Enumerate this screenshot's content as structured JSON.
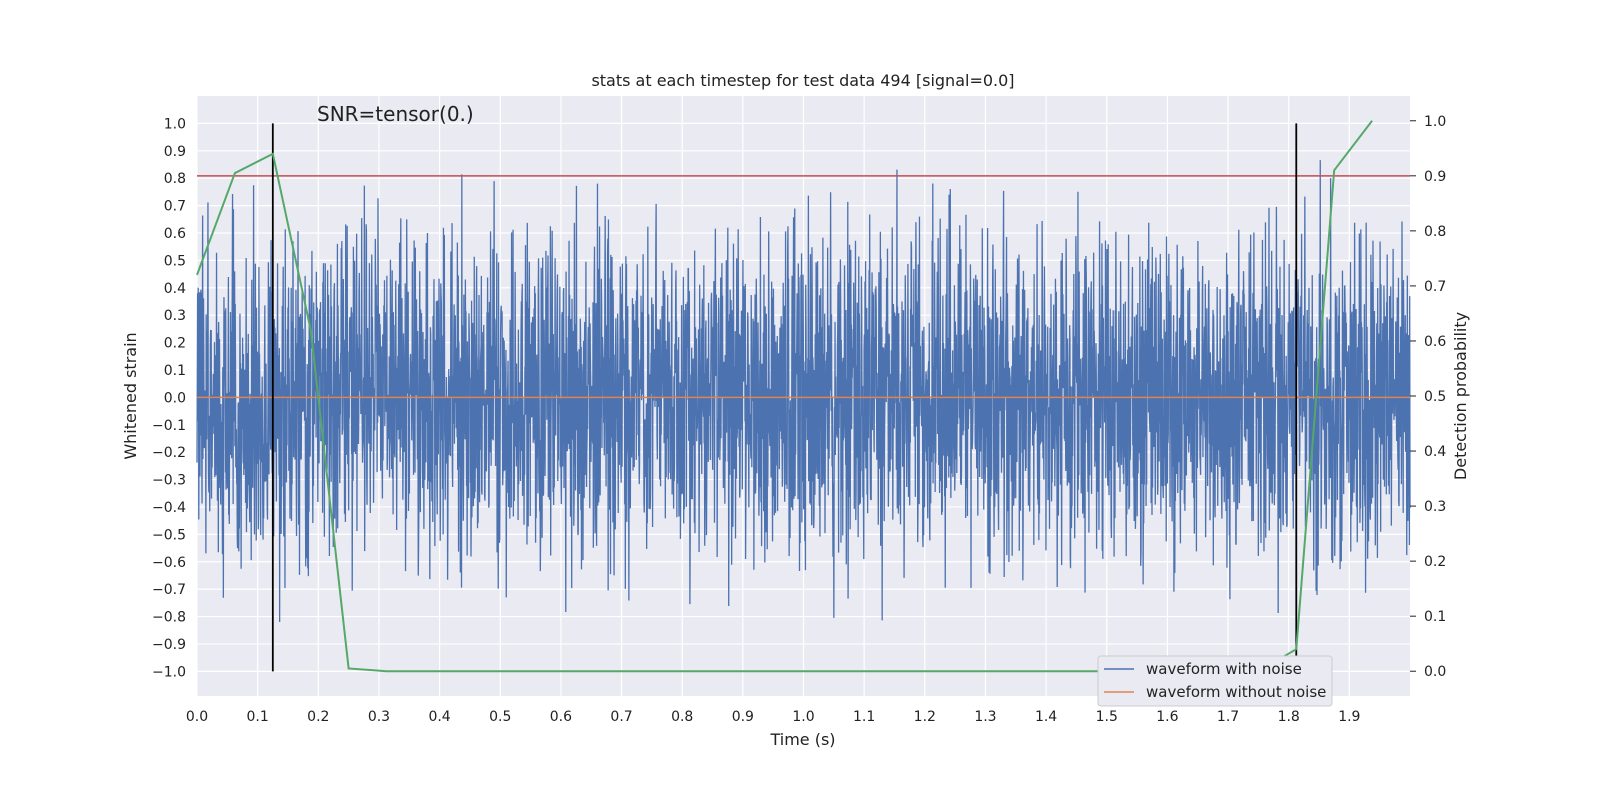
{
  "chart_data": {
    "type": "line",
    "title": "stats at each timestep for test data 494 [signal=0.0]",
    "annotation": "SNR=tensor(0.)",
    "xlabel": "Time (s)",
    "ylabel": "Whitened strain",
    "y2label": "Detection probability",
    "xlim": [
      0.0,
      2.0
    ],
    "ylim": [
      -1.09,
      1.1
    ],
    "y2lim": [
      -0.045,
      1.045
    ],
    "xticks": [
      0.0,
      0.1,
      0.2,
      0.3,
      0.4,
      0.5,
      0.6,
      0.7,
      0.8,
      0.9,
      1.0,
      1.1,
      1.2,
      1.3,
      1.4,
      1.5,
      1.6,
      1.7,
      1.8,
      1.9
    ],
    "yticks": [
      -1.0,
      -0.9,
      -0.8,
      -0.7,
      -0.6,
      -0.5,
      -0.4,
      -0.3,
      -0.2,
      -0.1,
      0.0,
      0.1,
      0.2,
      0.3,
      0.4,
      0.5,
      0.6,
      0.7,
      0.8,
      0.9,
      1.0
    ],
    "y2ticks": [
      0.0,
      0.1,
      0.2,
      0.3,
      0.4,
      0.5,
      0.6,
      0.7,
      0.8,
      0.9,
      1.0
    ],
    "grid": true,
    "legend_position": "bottom-right",
    "series": [
      {
        "name": "waveform with noise",
        "color": "#4c72b0",
        "axis": "left",
        "noise_samples": 4096,
        "noise_std": 0.3,
        "clip": [
          -1.0,
          1.0
        ],
        "x_range": [
          0.0,
          2.0
        ]
      },
      {
        "name": "waveform without noise",
        "color": "#dd8452",
        "axis": "left",
        "x": [
          0.0,
          2.0
        ],
        "y": [
          0.0,
          0.0
        ]
      },
      {
        "name": "",
        "color": "#55a868",
        "axis": "right",
        "x": [
          0.0,
          0.0625,
          0.125,
          0.1875,
          0.25,
          0.3125,
          0.375,
          0.4375,
          0.5,
          0.5625,
          0.625,
          0.6875,
          0.75,
          0.8125,
          0.875,
          0.9375,
          1.0,
          1.0625,
          1.125,
          1.1875,
          1.25,
          1.3125,
          1.375,
          1.4375,
          1.5,
          1.5625,
          1.625,
          1.6875,
          1.75,
          1.8125,
          1.875,
          1.9375
        ],
        "y": [
          0.72,
          0.905,
          0.94,
          0.62,
          0.005,
          0.0,
          0.0,
          0.0,
          0.0,
          0.0,
          0.0,
          0.0,
          0.0,
          0.0,
          0.0,
          0.0,
          0.0,
          0.0,
          0.0,
          0.0,
          0.0,
          0.0,
          0.0,
          0.0,
          0.0,
          0.0,
          0.0,
          0.0,
          0.0,
          0.04,
          0.91,
          1.0
        ]
      }
    ],
    "threshold": {
      "y2": 0.9,
      "color": "#c44e52"
    },
    "vlines": [
      {
        "x": 0.125,
        "y": [
          -1.0,
          1.0
        ],
        "color": "#000000"
      },
      {
        "x": 1.8125,
        "y": [
          -1.0,
          1.0
        ],
        "color": "#000000"
      }
    ]
  }
}
